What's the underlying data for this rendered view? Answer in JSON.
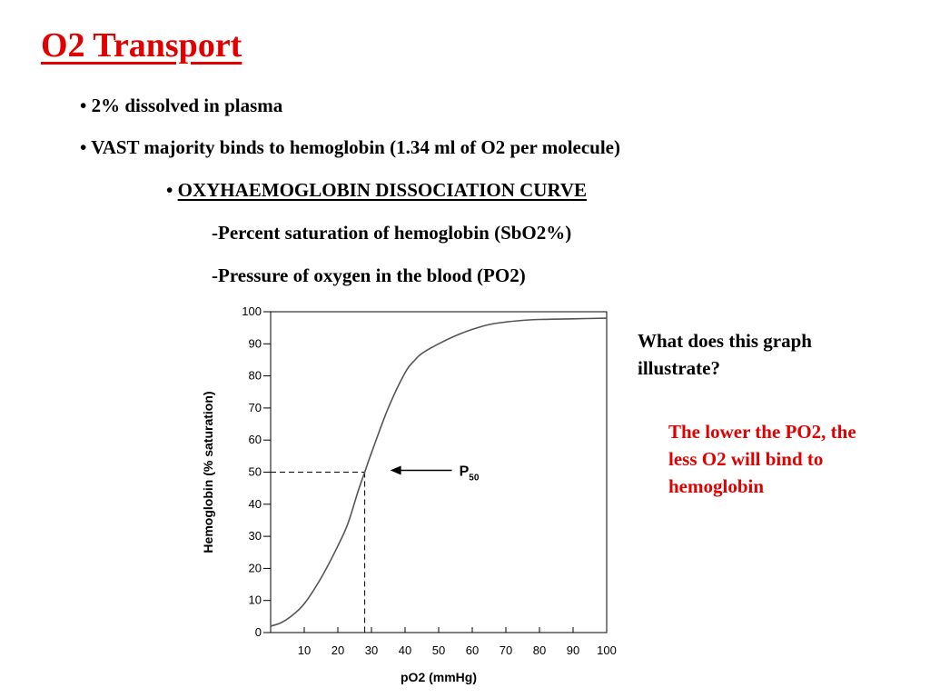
{
  "slide": {
    "title": "O2 Transport",
    "bullet_char": "•",
    "bullets": {
      "b1": "2% dissolved in plasma",
      "b2": "VAST majority binds to hemoglobin (1.34 ml of O2 per molecule)",
      "b3": "OXYHAEMOGLOBIN DISSOCIATION CURVE",
      "sub1": "-Percent saturation of hemoglobin (SbO2%)",
      "sub2": "-Pressure of oxygen in the blood (PO2)"
    },
    "question": "What does this graph illustrate?",
    "answer": "The lower the PO2, the less O2 will bind to hemoglobin"
  },
  "colors": {
    "title": "#e00000",
    "answer": "#e00000",
    "text": "#000000"
  },
  "chart_data": {
    "type": "line",
    "xlabel": "pO2 (mmHg)",
    "ylabel": "Hemoglobin (% saturation)",
    "xlim": [
      0,
      100
    ],
    "ylim": [
      0,
      100
    ],
    "x_ticks": [
      10,
      20,
      30,
      40,
      50,
      60,
      70,
      80,
      90,
      100
    ],
    "y_ticks": [
      0,
      10,
      20,
      30,
      40,
      50,
      60,
      70,
      80,
      90,
      100
    ],
    "series": [
      {
        "x": [
          0,
          3,
          6,
          10,
          15,
          20,
          23,
          26,
          28,
          30,
          35,
          40,
          43,
          45,
          50,
          55,
          60,
          65,
          70,
          75,
          80,
          90,
          100
        ],
        "y": [
          2,
          3,
          5,
          9,
          17,
          27,
          34,
          44,
          50,
          56,
          70,
          81,
          85,
          87,
          90,
          92.5,
          94.5,
          96,
          96.8,
          97.3,
          97.6,
          97.8,
          98
        ]
      }
    ],
    "annotation": {
      "label": "P",
      "subscript": "50",
      "x": 28,
      "y": 50
    },
    "grid": false
  }
}
